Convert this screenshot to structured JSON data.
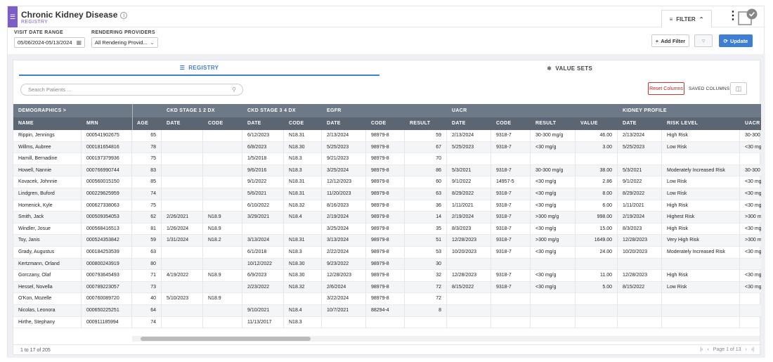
{
  "header": {
    "title": "Chronic Kidney Disease",
    "subtitle": "REGISTRY",
    "filter_label": "FILTER"
  },
  "filters": {
    "visit_label": "VISIT DATE RANGE",
    "visit_value": "05/06/2024-05/13/2024",
    "provider_label": "RENDERING PROVIDERS",
    "provider_value": "All Rendering Provid...",
    "add_filter": "Add Filter",
    "update": "Update"
  },
  "tabs": {
    "registry": "REGISTRY",
    "value_sets": "VALUE SETS"
  },
  "toolbar": {
    "search_placeholder": "Search Patients ...",
    "reset": "Reset Columns",
    "saved": "SAVED COLUMNS"
  },
  "groups": [
    "DEMOGRAPHICS >",
    "CKD STAGE 1 2 DX",
    "CKD STAGE 3 4 DX",
    "EGFR",
    "UACR",
    "KIDNEY PROFILE"
  ],
  "columns": [
    "NAME",
    "MRN",
    "AGE",
    "DATE",
    "CODE",
    "DATE",
    "CODE",
    "DATE",
    "CODE",
    "RESULT",
    "DATE",
    "CODE",
    "RESULT",
    "VALUE",
    "DATE",
    "RISK LEVEL",
    "UACR"
  ],
  "rows": [
    [
      "Rippin, Jennings",
      "000541902675",
      "65",
      "",
      "",
      "6/12/2023",
      "N18.31",
      "2/13/2024",
      "98979-8",
      "59",
      "2/13/2024",
      "9318-7",
      "30-300 mg/g",
      "46.00",
      "2/13/2024",
      "High Risk",
      "30-300"
    ],
    [
      "Willms, Aubree",
      "000181654816",
      "78",
      "",
      "",
      "6/8/2023",
      "N18.30",
      "5/25/2023",
      "98979-8",
      "67",
      "5/25/2023",
      "9318-7",
      "<30 mg/g",
      "3.00",
      "5/25/2023",
      "Low Risk",
      "<30 mg"
    ],
    [
      "Hamill, Bernadine",
      "000197379936",
      "75",
      "",
      "",
      "1/5/2018",
      "N18.3",
      "9/21/2023",
      "98979-8",
      "70",
      "",
      "",
      "",
      "",
      "",
      "",
      ""
    ],
    [
      "Howell, Nannie",
      "000766990744",
      "83",
      "",
      "",
      "9/6/2016",
      "N18.3",
      "3/25/2024",
      "98979-8",
      "86",
      "5/3/2021",
      "9318-7",
      "30-300 mg/g",
      "38.00",
      "5/3/2021",
      "Moderately Increased Risk",
      "30-300"
    ],
    [
      "Kovacek, Johnnie",
      "000560015150",
      "85",
      "",
      "",
      "9/1/2022",
      "N18.31",
      "12/12/2023",
      "98979-8",
      "60",
      "9/1/2022",
      "14957-5",
      "<30 mg/g",
      "2.86",
      "9/1/2022",
      "Low Risk",
      "<30 mg"
    ],
    [
      "Lindgren, Buford",
      "000229625959",
      "74",
      "",
      "",
      "5/6/2021",
      "N18.31",
      "11/20/2023",
      "98979-8",
      "63",
      "8/29/2022",
      "9318-7",
      "<30 mg/g",
      "8.00",
      "8/29/2022",
      "Low Risk",
      "<30 mg"
    ],
    [
      "Homenick, Kyle",
      "000627338063",
      "75",
      "",
      "",
      "6/10/2022",
      "N18.32",
      "8/16/2023",
      "98979-8",
      "36",
      "1/11/2021",
      "9318-7",
      "<30 mg/g",
      "6.00",
      "1/11/2021",
      "High Risk",
      "<30 mg"
    ],
    [
      "Smith, Jack",
      "000509354053",
      "62",
      "2/26/2021",
      "N18.9",
      "3/29/2021",
      "N18.4",
      "2/19/2024",
      "98979-8",
      "14",
      "2/19/2024",
      "9318-7",
      ">300 mg/g",
      "998.00",
      "2/19/2024",
      "Highest Risk",
      ">300 m"
    ],
    [
      "Windler, Josue",
      "000568416513",
      "81",
      "1/26/2024",
      "N18.9",
      "",
      "",
      "3/25/2024",
      "98979-8",
      "35",
      "8/3/2023",
      "9318-7",
      "<30 mg/g",
      "15.00",
      "8/3/2023",
      "High Risk",
      "<30 mg"
    ],
    [
      "Toy, Janis",
      "000524353842",
      "59",
      "1/31/2024",
      "N18.2",
      "3/13/2024",
      "N18.31",
      "3/13/2024",
      "98979-8",
      "51",
      "12/28/2023",
      "9318-7",
      ">300 mg/g",
      "1649.00",
      "12/28/2023",
      "Very High Risk",
      ">300 m"
    ],
    [
      "Grady, Augustus",
      "000184253539",
      "63",
      "",
      "",
      "6/1/2018",
      "N18.3",
      "2/22/2024",
      "98979-8",
      "53",
      "10/20/2023",
      "9318-7",
      "<30 mg/g",
      "24.00",
      "10/20/2023",
      "Moderately Increased Risk",
      "<30 mg"
    ],
    [
      "Kertzmann, Orland",
      "000800243919",
      "80",
      "",
      "",
      "10/12/2022",
      "N18.30",
      "9/23/2022",
      "98979-8",
      "30",
      "",
      "",
      "",
      "",
      "",
      "",
      ""
    ],
    [
      "Gorczany, Olaf",
      "000793645493",
      "71",
      "4/19/2022",
      "N18.9",
      "6/9/2023",
      "N18.30",
      "12/28/2023",
      "98979-8",
      "32",
      "12/28/2023",
      "9318-7",
      "<30 mg/g",
      "11.00",
      "12/28/2023",
      "High Risk",
      "<30 mg"
    ],
    [
      "Hessel, Novella",
      "000789223057",
      "73",
      "",
      "",
      "2/23/2022",
      "N18.32",
      "2/6/2024",
      "98979-8",
      "72",
      "8/15/2022",
      "9318-7",
      "<30 mg/g",
      "5.00",
      "8/15/2022",
      "Low Risk",
      "<30 mg"
    ],
    [
      "O'Kon, Mozelle",
      "000760089720",
      "40",
      "5/10/2023",
      "N18.9",
      "",
      "",
      "3/22/2024",
      "98979-8",
      "72",
      "",
      "",
      "",
      "",
      "",
      "",
      ""
    ],
    [
      "Nicolas, Leonora",
      "000650225251",
      "64",
      "",
      "",
      "9/10/2021",
      "N18.4",
      "10/7/2021",
      "88294-4",
      "8",
      "",
      "",
      "",
      "",
      "",
      "",
      ""
    ],
    [
      "Hirthe, Stephany",
      "000911185994",
      "74",
      "",
      "",
      "11/13/2017",
      "N18.3",
      "",
      "",
      "",
      "",
      "",
      "",
      "",
      "",
      "",
      ""
    ]
  ],
  "footer": {
    "count": "1 to 17 of 205",
    "page": "Page 1 of 13"
  }
}
